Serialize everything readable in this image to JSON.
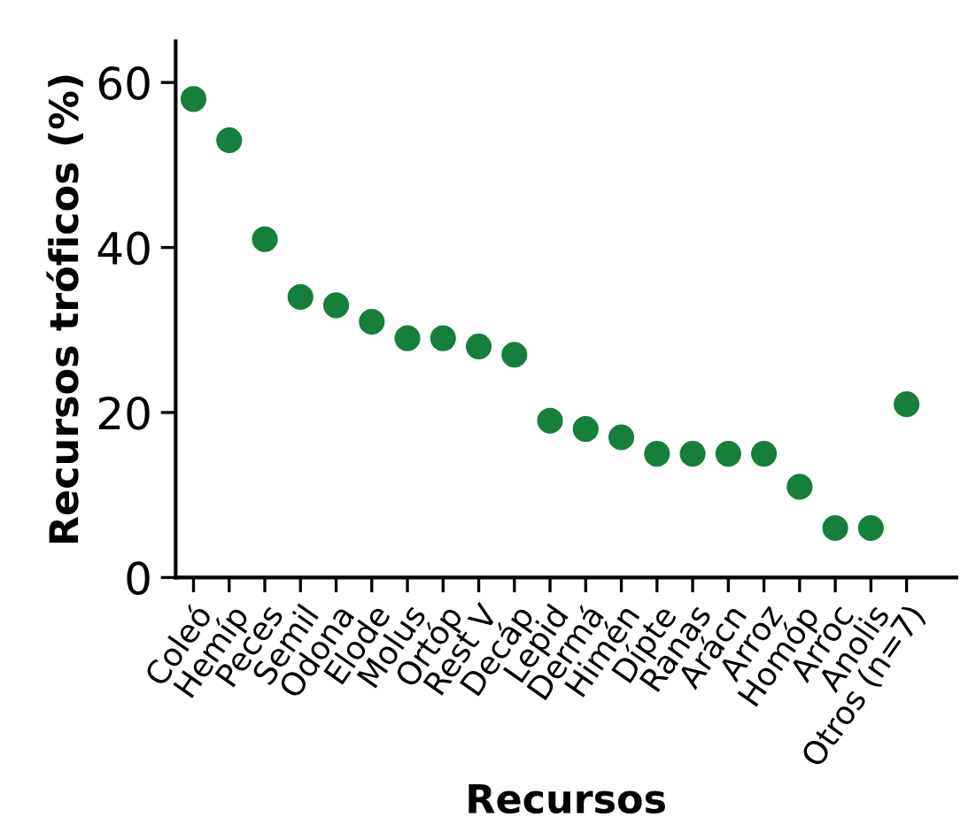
{
  "chart_data": {
    "type": "scatter",
    "xlabel": "Recursos",
    "ylabel": "Recursos tróficos (%)",
    "categories": [
      "Coleó",
      "Hemíp",
      "Peces",
      "Semil",
      "Odona",
      "Elode",
      "Molus",
      "Ortóp",
      "Rest V",
      "Decáp",
      "Lepid",
      "Dermá",
      "Himén",
      "Dípte",
      "Ranas",
      "Arácn",
      "Arroz",
      "Homóp",
      "Arroc",
      "Anolis",
      "Otros (n=7)"
    ],
    "series": [
      {
        "color": "#157f3b",
        "values": [
          58,
          53,
          41,
          34,
          33,
          31,
          29,
          29,
          28,
          27,
          19,
          18,
          17,
          15,
          15,
          15,
          15,
          11,
          6,
          6,
          21
        ]
      }
    ],
    "ylim": [
      0,
      65
    ],
    "yticks": [
      0,
      20,
      40,
      60
    ],
    "grid": false,
    "legend": false,
    "marker": "circle"
  }
}
